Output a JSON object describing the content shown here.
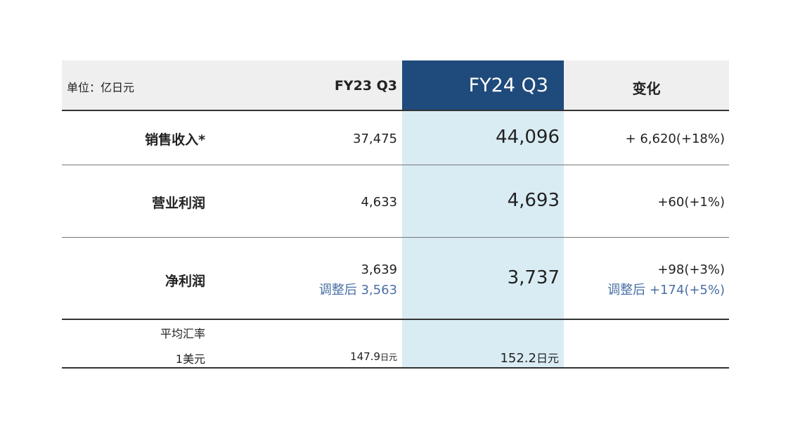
{
  "header": {
    "unit": "单位：亿日元",
    "col_prev": "FY23 Q3",
    "col_curr": "FY24 Q3",
    "col_change": "变化"
  },
  "rows": [
    {
      "label": "销售收入*",
      "prev": "37,475",
      "curr": "44,096",
      "change": "+ 6,620(+18%)"
    },
    {
      "label": "营业利润",
      "prev": "4,633",
      "curr": "4,693",
      "change": "+60(+1%)"
    },
    {
      "label": "净利润",
      "prev": "3,639",
      "prev_adjusted": "调整后 3,563",
      "curr": "3,737",
      "change": "+98(+3%)",
      "change_adjusted": "调整后 +174(+5%)"
    }
  ],
  "fx": {
    "label_line1": "平均汇率",
    "label_line2": "1美元",
    "prev_value": "147.9",
    "curr_value": "152.2",
    "unit": "日元"
  },
  "colors": {
    "header_highlight": "#1f4a7c",
    "column_highlight": "#d9ecf3",
    "header_gray": "#efefef",
    "adjusted_text": "#4a6fa5"
  }
}
